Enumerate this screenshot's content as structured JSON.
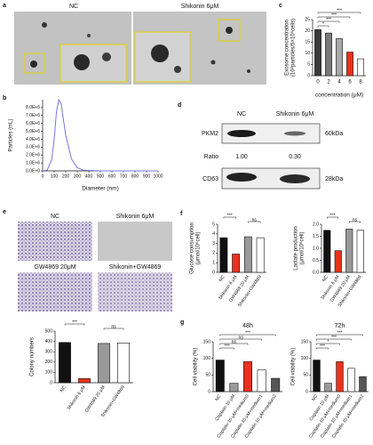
{
  "panel_labels": [
    "a",
    "b",
    "c",
    "d",
    "e",
    "f",
    "g"
  ],
  "panel_a": {
    "images": [
      "NC",
      "Shikonin 6μM"
    ]
  },
  "panel_d": {
    "lanes": [
      "NC",
      "Shikonin 6μM"
    ],
    "bands": [
      {
        "name": "PKM2",
        "size": "60kDa"
      },
      {
        "name": "CD63",
        "size": "28kDa"
      }
    ],
    "ratio_label": "Ratio",
    "ratios": [
      "1.00",
      "0.30"
    ]
  },
  "panel_e": {
    "images": [
      "NC",
      "Shikonin 6μM",
      "GW4869 20μM",
      "Shikonin+GW4869"
    ]
  },
  "chart_data": [
    {
      "type": "bar",
      "ylabel": [
        "Exosome concentration",
        "(10⁸particles/5×10⁶cells)"
      ],
      "xlabel": "concentration  (μM)",
      "categories": [
        "0",
        "2",
        "4",
        "6",
        "8"
      ],
      "values": [
        20.5,
        19,
        16.5,
        10.5,
        7.5
      ],
      "colors": [
        "#3a3a3a",
        "#7a7a7a",
        "#a8a8a8",
        "#e8321e",
        "#ffffff"
      ],
      "ylim": [
        0,
        25
      ],
      "yticks": [
        0,
        5,
        10,
        15,
        20,
        25
      ],
      "annotations": [
        {
          "from": 0,
          "to": 4,
          "label": "***"
        },
        {
          "from": 0,
          "to": 3,
          "label": "***"
        },
        {
          "from": 0,
          "to": 2,
          "label": "***"
        },
        {
          "from": 0,
          "to": 1,
          "label": "*"
        }
      ]
    },
    {
      "type": "line",
      "ylabel": [
        "Particles  (mL)"
      ],
      "xlabel": "Diameter  (nm)",
      "color": "#7777dd",
      "x": [
        0,
        40,
        80,
        100,
        120,
        140,
        160,
        180,
        200,
        250,
        300,
        350,
        400,
        500,
        600,
        700,
        800,
        900,
        1000
      ],
      "values": [
        0,
        100000,
        1500000,
        4000000,
        7500000,
        9000000,
        8500000,
        6500000,
        4500000,
        1500000,
        400000,
        100000,
        50000,
        0,
        0,
        0,
        0,
        0,
        0
      ],
      "xlim": [
        0,
        1000
      ],
      "xticks": [
        0,
        100,
        200,
        300,
        400,
        500,
        600,
        700,
        800,
        900,
        1000
      ],
      "ylim": [
        0,
        9000000
      ],
      "yticks": [
        {
          "value": 0,
          "label": "0.0E+0"
        },
        {
          "value": 1000000,
          "label": "1.0E+6"
        },
        {
          "value": 2000000,
          "label": "2.0E+6"
        },
        {
          "value": 3000000,
          "label": "3.0E+6"
        },
        {
          "value": 4000000,
          "label": "4.0E+6"
        },
        {
          "value": 5000000,
          "label": "5.0E+6"
        },
        {
          "value": 6000000,
          "label": "6.0E+6"
        },
        {
          "value": 7000000,
          "label": "7.0E+6"
        },
        {
          "value": 8000000,
          "label": "8.0E+6"
        }
      ]
    },
    {
      "type": "bar",
      "ylabel": [
        "Colony numbers"
      ],
      "categories": [
        "NC",
        "Shikonin 6 μM",
        "GW4869 20 μM",
        "Shikonin+GW4869"
      ],
      "values": [
        390,
        40,
        380,
        385
      ],
      "colors": [
        "#111111",
        "#e8321e",
        "#999999",
        "#ffffff"
      ],
      "ylim": [
        0,
        500
      ],
      "yticks": [
        0,
        100,
        200,
        300,
        400,
        500
      ],
      "annotations": [
        {
          "from": 0,
          "to": 1,
          "label": "***"
        },
        {
          "from": 2,
          "to": 3,
          "label": "ns"
        }
      ]
    },
    {
      "type": "bar",
      "ylabel": [
        "Glucose consumption",
        "(μmol/10⁶cell)"
      ],
      "categories": [
        "NC",
        "Shikonin 6 μM",
        "GW4869 20 μM",
        "Shikonin+GW4869"
      ],
      "values": [
        3.6,
        1.9,
        3.7,
        3.6
      ],
      "colors": [
        "#111111",
        "#e8321e",
        "#999999",
        "#ffffff"
      ],
      "ylim": [
        0,
        5
      ],
      "yticks": [
        0,
        1,
        2,
        3,
        4,
        5
      ],
      "annotations": [
        {
          "from": 0,
          "to": 1,
          "label": "***"
        },
        {
          "from": 2,
          "to": 3,
          "label": "ns"
        }
      ]
    },
    {
      "type": "bar",
      "ylabel": [
        "Lactate production",
        "(μmol/10⁶cell)"
      ],
      "categories": [
        "NC",
        "Shikonin 6 μM",
        "GW4869 20 μM",
        "Shikonin+GW4869"
      ],
      "values": [
        1.75,
        0.9,
        1.8,
        1.75
      ],
      "colors": [
        "#111111",
        "#e8321e",
        "#999999",
        "#ffffff"
      ],
      "ylim": [
        0,
        2
      ],
      "yticks": [
        {
          "value": 0,
          "label": "0.0"
        },
        0.5,
        {
          "value": 1,
          "label": "1.0"
        },
        1.5,
        {
          "value": 2,
          "label": "2.0"
        }
      ],
      "annotations": [
        {
          "from": 0,
          "to": 1,
          "label": "***"
        },
        {
          "from": 2,
          "to": 3,
          "label": "ns"
        }
      ]
    },
    {
      "type": "bar",
      "title": "48h",
      "ylabel": [
        "Cell viability (%)"
      ],
      "categories": [
        "NC",
        "Cisplatin 10 μM",
        "Cisplatin 10 μM+medium0",
        "Cisplatin 10 μM+medium1",
        "Cisplatin 10 μM+medium2"
      ],
      "values": [
        95,
        25,
        90,
        65,
        40
      ],
      "colors": [
        "#111111",
        "#9a9a9a",
        "#e8321e",
        "#ffffff",
        "#555555"
      ],
      "ylim": [
        0,
        150
      ],
      "yticks": [
        0,
        50,
        100,
        150
      ],
      "annotations": [
        {
          "from": 0,
          "to": 4,
          "label": "***"
        },
        {
          "from": 0,
          "to": 3,
          "label": "ns"
        },
        {
          "from": 0,
          "to": 2,
          "label": "ns"
        },
        {
          "from": 0,
          "to": 1,
          "label": "***"
        }
      ]
    },
    {
      "type": "bar",
      "title": "72h",
      "ylabel": [
        "Cell viability (%)"
      ],
      "categories": [
        "NC",
        "Cisplatin 10 μM",
        "Cisplatin 10 μM+medium0",
        "Cisplatin 10 μM+medium1",
        "Cisplatin 10 μM+medium2"
      ],
      "values": [
        95,
        25,
        90,
        70,
        45
      ],
      "colors": [
        "#111111",
        "#9a9a9a",
        "#e8321e",
        "#ffffff",
        "#555555"
      ],
      "ylim": [
        0,
        150
      ],
      "yticks": [
        0,
        50,
        100,
        150
      ],
      "annotations": [
        {
          "from": 0,
          "to": 4,
          "label": "***"
        },
        {
          "from": 0,
          "to": 3,
          "label": "***"
        },
        {
          "from": 0,
          "to": 2,
          "label": "*"
        },
        {
          "from": 0,
          "to": 1,
          "label": "***"
        }
      ]
    }
  ]
}
